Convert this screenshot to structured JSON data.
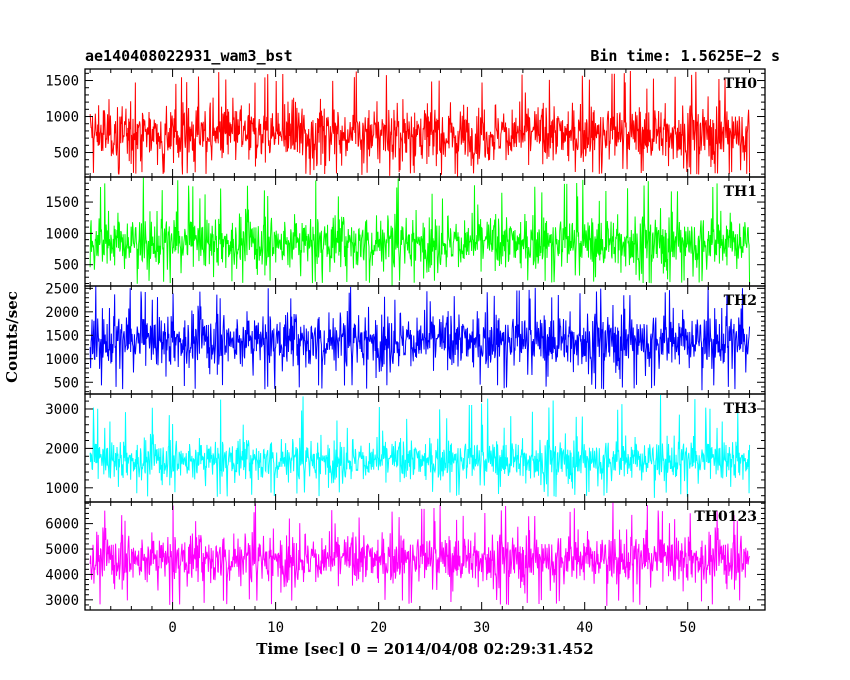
{
  "header": {
    "left_title": "ae140408022931_wam3_bst",
    "right_title": "Bin time: 1.5625E−2 s"
  },
  "chart_data": {
    "type": "line",
    "style": "histogram-step",
    "xlabel": "Time [sec] 0 = 2014/04/08 02:29:31.452",
    "ylabel": "Counts/sec",
    "xlim": [
      -8.5,
      57.5
    ],
    "x_ticks": [
      0,
      10,
      20,
      30,
      40,
      50
    ],
    "x_tick_labels": [
      "0",
      "10",
      "20",
      "30",
      "40",
      "50"
    ],
    "x_data_range": [
      -8.0,
      56.0
    ],
    "bin_time": 0.015625,
    "grid": false,
    "panels": [
      {
        "name": "TH0",
        "color": "#ff0000",
        "ylim": [
          160,
          1660
        ],
        "y_ticks": [
          500,
          1000,
          1500
        ],
        "y_tick_labels": [
          "500",
          "1000",
          "1500"
        ],
        "mean": 760,
        "typical_low": 230,
        "typical_high": 1450,
        "max": 1660
      },
      {
        "name": "TH1",
        "color": "#00ff00",
        "ylim": [
          160,
          1900
        ],
        "y_ticks": [
          500,
          1000,
          1500
        ],
        "y_tick_labels": [
          "500",
          "1000",
          "1500"
        ],
        "mean": 850,
        "typical_low": 250,
        "typical_high": 1550,
        "max": 1900
      },
      {
        "name": "TH2",
        "color": "#0000ff",
        "ylim": [
          250,
          2550
        ],
        "y_ticks": [
          500,
          1000,
          1500,
          2000,
          2500
        ],
        "y_tick_labels": [
          "500",
          "1000",
          "1500",
          "2000",
          "2500"
        ],
        "mean": 1380,
        "typical_low": 450,
        "typical_high": 2250,
        "max": 2550
      },
      {
        "name": "TH3",
        "color": "#00ffff",
        "ylim": [
          640,
          3380
        ],
        "y_ticks": [
          1000,
          2000,
          3000
        ],
        "y_tick_labels": [
          "1000",
          "2000",
          "3000"
        ],
        "mean": 1700,
        "typical_low": 900,
        "typical_high": 2500,
        "max": 3380
      },
      {
        "name": "TH0123",
        "color": "#ff00ff",
        "ylim": [
          2600,
          6850
        ],
        "y_ticks": [
          3000,
          4000,
          5000,
          6000
        ],
        "y_tick_labels": [
          "3000",
          "4000",
          "5000",
          "6000"
        ],
        "mean": 4600,
        "typical_low": 3000,
        "typical_high": 6000,
        "max": 6850
      }
    ]
  }
}
